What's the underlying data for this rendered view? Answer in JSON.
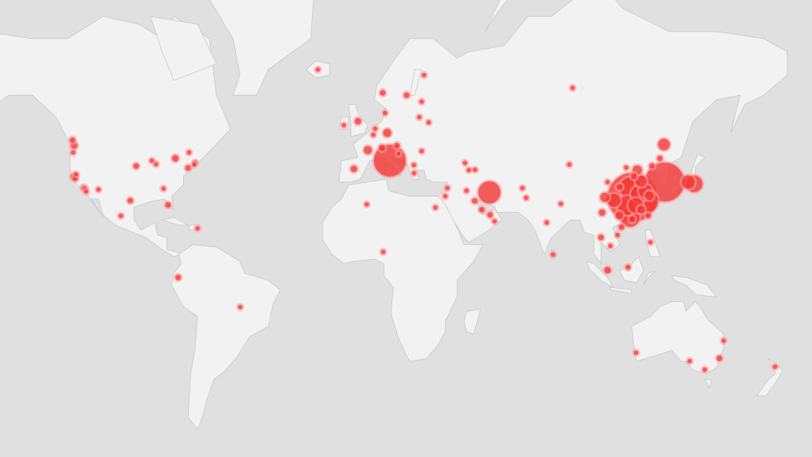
{
  "map": {
    "projection": "mercator",
    "colors": {
      "ocean": "#e0e0e0",
      "land": "#f2f2f2",
      "border": "#c4c4c4",
      "bubble_fill": "#f01e1e",
      "bubble_stroke": "#ff9a9a"
    },
    "points": [
      {
        "lat": 30.6,
        "lon": 114.3,
        "size": 100
      },
      {
        "lat": 23.1,
        "lon": 113.3,
        "size": 16
      },
      {
        "lat": 29.2,
        "lon": 120.1,
        "size": 25
      },
      {
        "lat": 34.0,
        "lon": 113.6,
        "size": 20
      },
      {
        "lat": 27.6,
        "lon": 112.0,
        "size": 16
      },
      {
        "lat": 31.8,
        "lon": 117.2,
        "size": 12
      },
      {
        "lat": 27.6,
        "lon": 115.7,
        "size": 10
      },
      {
        "lat": 36.3,
        "lon": 118.0,
        "size": 6
      },
      {
        "lat": 32.9,
        "lon": 119.8,
        "size": 8
      },
      {
        "lat": 29.5,
        "lon": 106.5,
        "size": 8
      },
      {
        "lat": 30.6,
        "lon": 102.7,
        "size": 4
      },
      {
        "lat": 47.8,
        "lon": 127.7,
        "size": 6
      },
      {
        "lat": 40.0,
        "lon": 116.4,
        "size": 4
      },
      {
        "lat": 31.2,
        "lon": 121.5,
        "size": 4
      },
      {
        "lat": 38.0,
        "lon": 115.0,
        "size": 2
      },
      {
        "lat": 26.0,
        "lon": 118.0,
        "size": 3
      },
      {
        "lat": 23.8,
        "lon": 108.8,
        "size": 3
      },
      {
        "lat": 34.3,
        "lon": 108.9,
        "size": 2
      },
      {
        "lat": 24.9,
        "lon": 101.5,
        "size": 2
      },
      {
        "lat": 19.2,
        "lon": 109.7,
        "size": 1.5
      },
      {
        "lat": 41.8,
        "lon": 87.6,
        "size": 1
      },
      {
        "lat": 36.0,
        "lon": 103.8,
        "size": 1
      },
      {
        "lat": 40.8,
        "lon": 111.7,
        "size": 1
      },
      {
        "lat": 43.7,
        "lon": 126.0,
        "size": 1.5
      },
      {
        "lat": 41.3,
        "lon": 122.6,
        "size": 1.5
      },
      {
        "lat": 22.3,
        "lon": 114.2,
        "size": 2
      },
      {
        "lat": 23.7,
        "lon": 121.0,
        "size": 1.5
      },
      {
        "lat": 36.0,
        "lon": 128.0,
        "size": 64
      },
      {
        "lat": 36.0,
        "lon": 138.0,
        "size": 8
      },
      {
        "lat": 35.4,
        "lon": 140.5,
        "size": 12
      },
      {
        "lat": 1.3,
        "lon": 103.8,
        "size": 2
      },
      {
        "lat": 2.5,
        "lon": 112.5,
        "size": 1.2
      },
      {
        "lat": 15.0,
        "lon": 101.0,
        "size": 1.5
      },
      {
        "lat": 16.0,
        "lon": 108.0,
        "size": 1
      },
      {
        "lat": 11.5,
        "lon": 105.0,
        "size": 1
      },
      {
        "lat": 13.0,
        "lon": 122.0,
        "size": 1
      },
      {
        "lat": 28.2,
        "lon": 84.0,
        "size": 1
      },
      {
        "lat": 21.0,
        "lon": 78.0,
        "size": 1
      },
      {
        "lat": 7.9,
        "lon": 80.7,
        "size": 1
      },
      {
        "lat": 24.0,
        "lon": 54.0,
        "size": 1.5
      },
      {
        "lat": 32.4,
        "lon": 53.7,
        "size": 21
      },
      {
        "lat": 33.0,
        "lon": 44.0,
        "size": 1
      },
      {
        "lat": 29.3,
        "lon": 47.5,
        "size": 1.5
      },
      {
        "lat": 26.0,
        "lon": 50.5,
        "size": 1.5
      },
      {
        "lat": 21.5,
        "lon": 55.9,
        "size": 1
      },
      {
        "lat": 33.9,
        "lon": 35.9,
        "size": 1
      },
      {
        "lat": 31.0,
        "lon": 35.0,
        "size": 1
      },
      {
        "lat": 26.8,
        "lon": 30.8,
        "size": 1
      },
      {
        "lat": 28.0,
        "lon": 1.7,
        "size": 1
      },
      {
        "lat": 9.0,
        "lon": 8.7,
        "size": 1
      },
      {
        "lat": 33.9,
        "lon": 67.7,
        "size": 1
      },
      {
        "lat": 30.4,
        "lon": 69.3,
        "size": 1
      },
      {
        "lat": 42.3,
        "lon": 43.4,
        "size": 1
      },
      {
        "lat": 40.1,
        "lon": 47.6,
        "size": 1
      },
      {
        "lat": 40.0,
        "lon": 45.0,
        "size": 1
      },
      {
        "lat": 61.5,
        "lon": 89.0,
        "size": 1
      },
      {
        "lat": 43.0,
        "lon": 11.5,
        "size": 43
      },
      {
        "lat": 40.4,
        "lon": -3.7,
        "size": 2
      },
      {
        "lat": 46.2,
        "lon": 2.2,
        "size": 3
      },
      {
        "lat": 51.0,
        "lon": 10.4,
        "size": 3
      },
      {
        "lat": 54.0,
        "lon": -2.0,
        "size": 2
      },
      {
        "lat": 53.0,
        "lon": -8.0,
        "size": 1
      },
      {
        "lat": 46.8,
        "lon": 8.2,
        "size": 2
      },
      {
        "lat": 47.5,
        "lon": 14.5,
        "size": 1.5
      },
      {
        "lat": 45.1,
        "lon": 15.2,
        "size": 1
      },
      {
        "lat": 39.0,
        "lon": 21.8,
        "size": 1
      },
      {
        "lat": 41.6,
        "lon": 21.7,
        "size": 1
      },
      {
        "lat": 50.5,
        "lon": 4.5,
        "size": 1
      },
      {
        "lat": 52.1,
        "lon": 5.3,
        "size": 1
      },
      {
        "lat": 56.0,
        "lon": 9.5,
        "size": 1
      },
      {
        "lat": 60.5,
        "lon": 8.5,
        "size": 1.5
      },
      {
        "lat": 60.0,
        "lon": 18.6,
        "size": 1.5
      },
      {
        "lat": 64.0,
        "lon": 26.0,
        "size": 1
      },
      {
        "lat": 58.6,
        "lon": 25.0,
        "size": 1
      },
      {
        "lat": 55.0,
        "lon": 24.0,
        "size": 1
      },
      {
        "lat": 53.7,
        "lon": 28.0,
        "size": 1
      },
      {
        "lat": 45.9,
        "lon": 25.0,
        "size": 1
      },
      {
        "lat": 65.0,
        "lon": -19.0,
        "size": 1
      },
      {
        "lat": -14.2,
        "lon": -51.9,
        "size": 1
      },
      {
        "lat": -1.8,
        "lon": -78.2,
        "size": 1.5
      },
      {
        "lat": 23.6,
        "lon": -102.5,
        "size": 1
      },
      {
        "lat": 18.7,
        "lon": -70.0,
        "size": 1
      },
      {
        "lat": 49.0,
        "lon": -123.0,
        "size": 1.5
      },
      {
        "lat": 43.7,
        "lon": -79.4,
        "size": 2
      },
      {
        "lat": 45.5,
        "lon": -73.6,
        "size": 1
      },
      {
        "lat": 47.5,
        "lon": -122.3,
        "size": 2
      },
      {
        "lat": 45.5,
        "lon": -122.7,
        "size": 1
      },
      {
        "lat": 37.8,
        "lon": -122.4,
        "size": 2
      },
      {
        "lat": 37.3,
        "lon": -121.9,
        "size": 1.5
      },
      {
        "lat": 34.0,
        "lon": -118.2,
        "size": 1.5
      },
      {
        "lat": 33.7,
        "lon": -117.8,
        "size": 1
      },
      {
        "lat": 32.7,
        "lon": -117.2,
        "size": 1
      },
      {
        "lat": 38.6,
        "lon": -121.5,
        "size": 1
      },
      {
        "lat": 33.4,
        "lon": -112.0,
        "size": 1
      },
      {
        "lat": 29.4,
        "lon": -98.5,
        "size": 1.5
      },
      {
        "lat": 41.9,
        "lon": -87.6,
        "size": 1
      },
      {
        "lat": 43.0,
        "lon": -89.4,
        "size": 1
      },
      {
        "lat": 40.7,
        "lon": -74.0,
        "size": 1.5
      },
      {
        "lat": 42.4,
        "lon": -71.0,
        "size": 1
      },
      {
        "lat": 41.8,
        "lon": -71.4,
        "size": 1
      },
      {
        "lat": 27.8,
        "lon": -82.5,
        "size": 1.5
      },
      {
        "lat": 41.3,
        "lon": -96.0,
        "size": 1.5
      },
      {
        "lat": 33.7,
        "lon": -84.4,
        "size": 1
      },
      {
        "lat": -31.9,
        "lon": 115.9,
        "size": 1
      },
      {
        "lat": -34.9,
        "lon": 138.6,
        "size": 1
      },
      {
        "lat": -37.8,
        "lon": 145.0,
        "size": 1
      },
      {
        "lat": -33.9,
        "lon": 151.2,
        "size": 1.5
      },
      {
        "lat": -27.5,
        "lon": 153.0,
        "size": 1
      },
      {
        "lat": -36.8,
        "lon": 174.8,
        "size": 1
      }
    ]
  }
}
